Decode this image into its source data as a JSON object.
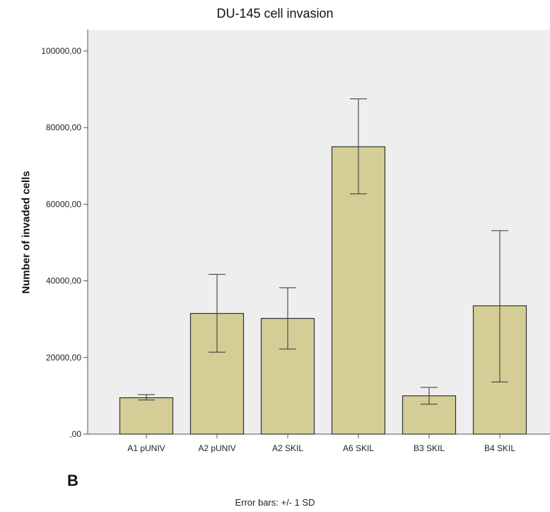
{
  "chart_data": {
    "type": "bar",
    "title": "DU-145 cell invasion",
    "xlabel": "",
    "ylabel": "Number of invaded cells",
    "categories": [
      "A1 pUNIV",
      "A2 pUNIV",
      "A2 SKIL",
      "A6 SKIL",
      "B3 SKIL",
      "B4 SKIL"
    ],
    "values": [
      9500,
      31500,
      30200,
      75000,
      10000,
      33500
    ],
    "error_low": [
      8900,
      21400,
      22200,
      62700,
      7800,
      13600
    ],
    "error_high": [
      10300,
      41700,
      38200,
      87500,
      12200,
      53100
    ],
    "ylim": [
      0,
      100000
    ],
    "yticks": [
      0,
      20000,
      40000,
      60000,
      80000,
      100000
    ],
    "ytick_labels": [
      ",00",
      "20000,00",
      "40000,00",
      "60000,00",
      "80000,00",
      "100000,00"
    ],
    "grid": false,
    "colors": {
      "bar_fill": "#d4cd96",
      "bar_stroke": "#333333",
      "plot_bg": "#eeeeee",
      "error_bar": "#333333"
    }
  },
  "panel_label": "B",
  "footnote": "Error bars: +/- 1 SD"
}
